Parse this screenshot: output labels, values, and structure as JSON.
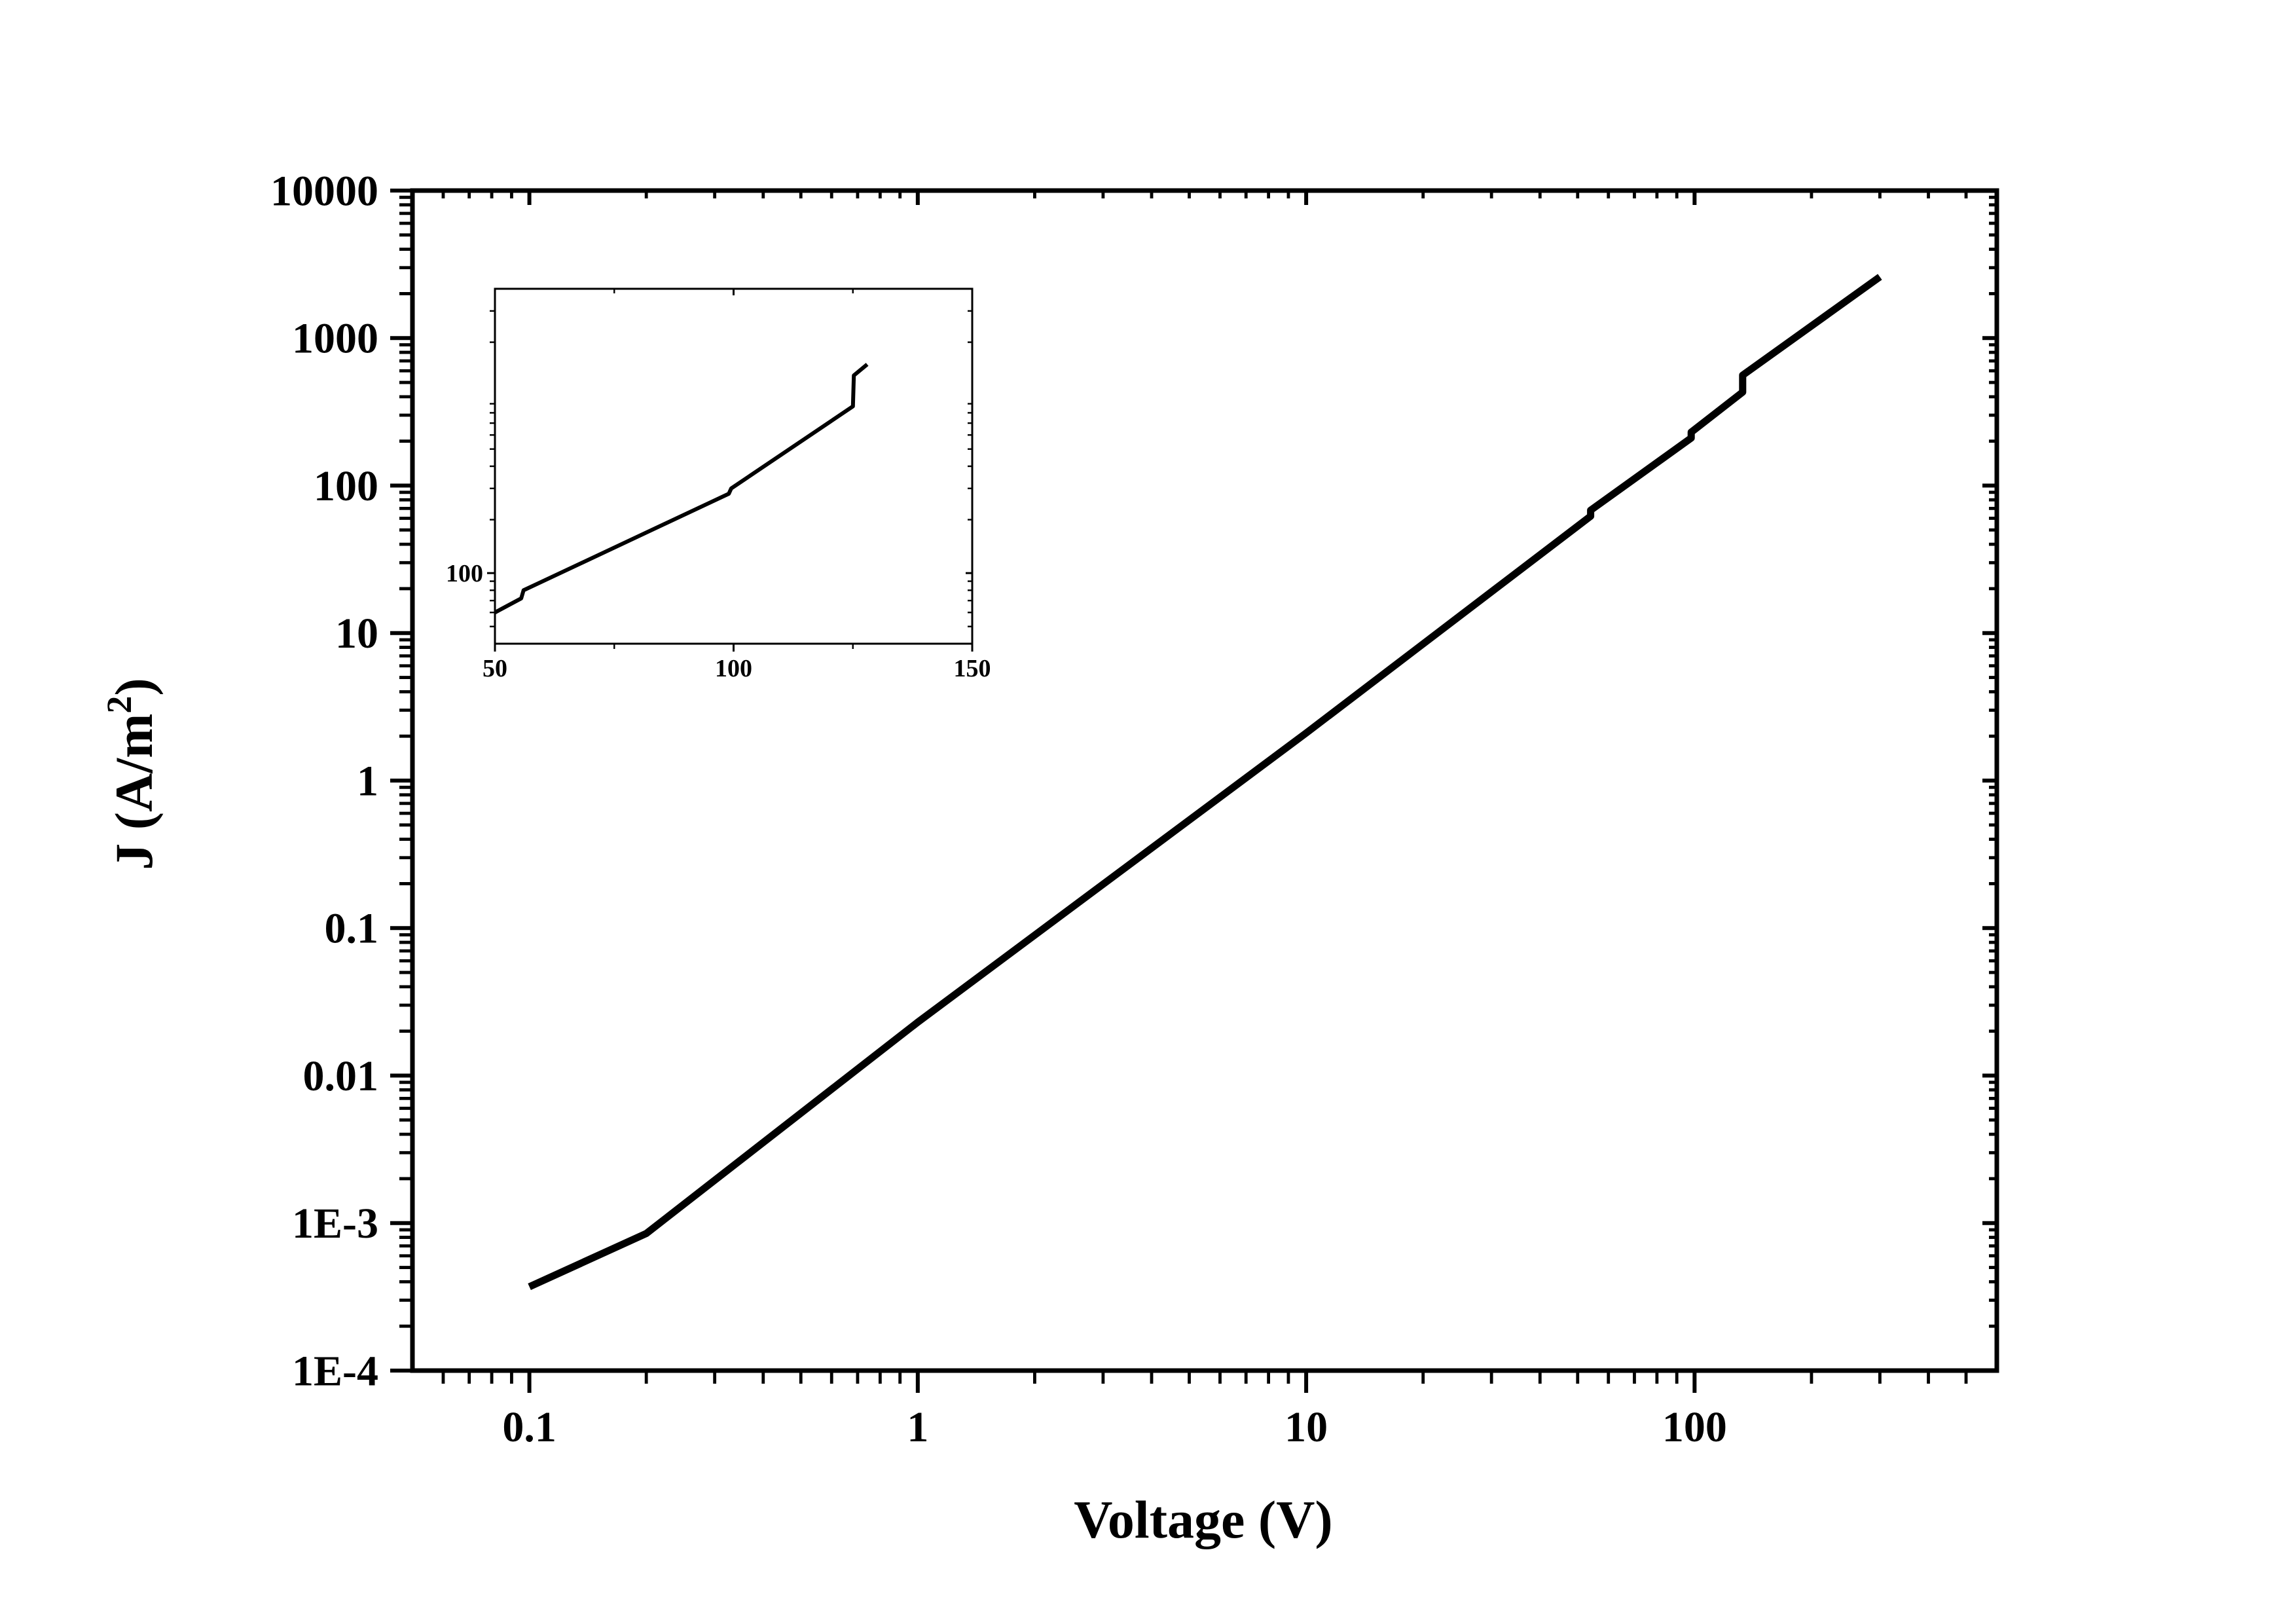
{
  "chart_data": [
    {
      "type": "line",
      "title": "",
      "xlabel": "Voltage (V)",
      "ylabel_main": "J (A/m",
      "ylabel_sup": "2",
      "ylabel_close": ")",
      "x_scale": "log",
      "y_scale": "log",
      "xlim": [
        0.05,
        600
      ],
      "ylim": [
        0.0001,
        10000
      ],
      "grid": false,
      "legend": "none",
      "line_color": "#000000",
      "xticks": [
        {
          "value": 0.1,
          "label": "0.1"
        },
        {
          "value": 1,
          "label": "1"
        },
        {
          "value": 10,
          "label": "10"
        },
        {
          "value": 100,
          "label": "100"
        }
      ],
      "yticks": [
        {
          "value": 0.0001,
          "label": "1E-4"
        },
        {
          "value": 0.001,
          "label": "1E-3"
        },
        {
          "value": 0.01,
          "label": "0.01"
        },
        {
          "value": 0.1,
          "label": "0.1"
        },
        {
          "value": 1,
          "label": "1"
        },
        {
          "value": 10,
          "label": "10"
        },
        {
          "value": 100,
          "label": "100"
        },
        {
          "value": 1000,
          "label": "1000"
        },
        {
          "value": 10000,
          "label": "10000"
        }
      ],
      "series": [
        {
          "x": [
            0.1,
            0.2,
            1,
            10,
            54,
            54,
            98,
            98,
            133,
            133,
            300
          ],
          "y": [
            0.00037,
            0.00085,
            0.023,
            2.1,
            62,
            68,
            210,
            230,
            430,
            560,
            2600
          ]
        }
      ]
    },
    {
      "type": "line",
      "title": "",
      "x_scale": "linear",
      "y_scale": "log",
      "xlim": [
        50,
        150
      ],
      "ylim": [
        40,
        4000
      ],
      "grid": false,
      "legend": "none",
      "line_color": "#000000",
      "xticks": [
        {
          "value": 50,
          "label": "50"
        },
        {
          "value": 100,
          "label": "100"
        },
        {
          "value": 150,
          "label": "150"
        }
      ],
      "yticks": [
        {
          "value": 100,
          "label": "100"
        }
      ],
      "series": [
        {
          "x": [
            50,
            55.5,
            56,
            99,
            99.5,
            125,
            125.2,
            128
          ],
          "y": [
            60,
            72,
            80,
            280,
            300,
            870,
            1300,
            1500
          ]
        }
      ]
    }
  ]
}
